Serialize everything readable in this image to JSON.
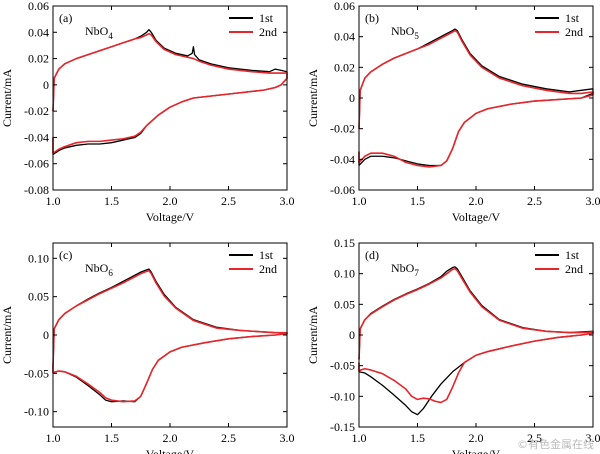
{
  "watermark": "©有色金属在线",
  "colors": {
    "first": "#000000",
    "second": "#e8252a",
    "axis": "#000000"
  },
  "chart_data": [
    {
      "type": "line",
      "panel": "(a)",
      "compound": "NbO",
      "compound_sub": "4",
      "xlabel": "Voltage/V",
      "ylabel": "Current/mA",
      "xlim": [
        1.0,
        3.0
      ],
      "ylim": [
        -0.08,
        0.06
      ],
      "xticks": [
        1.0,
        1.5,
        2.0,
        2.5,
        3.0
      ],
      "xtick_labels": [
        "1.0",
        "1.5",
        "2.0",
        "2.5",
        "3.0"
      ],
      "yticks": [
        -0.08,
        -0.06,
        -0.04,
        -0.02,
        0,
        0.02,
        0.04,
        0.06
      ],
      "ytick_labels": [
        "-0.08",
        "-0.06",
        "-0.04",
        "-0.02",
        "0",
        "0.02",
        "0.04",
        "0.06"
      ],
      "legend": [
        "1st",
        "2nd"
      ],
      "legend_position": "top-right",
      "series": [
        {
          "name": "1st",
          "color": "#000000",
          "x": [
            1.0,
            1.01,
            1.05,
            1.1,
            1.2,
            1.3,
            1.4,
            1.5,
            1.6,
            1.7,
            1.75,
            1.8,
            1.82,
            1.84,
            1.88,
            1.95,
            2.05,
            2.15,
            2.19,
            2.2,
            2.21,
            2.25,
            2.35,
            2.5,
            2.7,
            2.85,
            2.9,
            2.95,
            3.0,
            3.0,
            2.95,
            2.9,
            2.8,
            2.6,
            2.4,
            2.2,
            2.1,
            2.0,
            1.9,
            1.8,
            1.75,
            1.7,
            1.65,
            1.6,
            1.5,
            1.4,
            1.3,
            1.2,
            1.1,
            1.05,
            1.0,
            1.0
          ],
          "y": [
            -0.02,
            0.005,
            0.012,
            0.016,
            0.02,
            0.023,
            0.026,
            0.029,
            0.032,
            0.035,
            0.037,
            0.04,
            0.042,
            0.04,
            0.034,
            0.028,
            0.024,
            0.022,
            0.024,
            0.029,
            0.023,
            0.019,
            0.016,
            0.013,
            0.011,
            0.01,
            0.012,
            0.011,
            0.01,
            0.005,
            0.0,
            -0.002,
            -0.004,
            -0.006,
            -0.008,
            -0.01,
            -0.013,
            -0.017,
            -0.023,
            -0.031,
            -0.037,
            -0.04,
            -0.041,
            -0.042,
            -0.044,
            -0.045,
            -0.045,
            -0.046,
            -0.048,
            -0.05,
            -0.053,
            -0.04
          ]
        },
        {
          "name": "2nd",
          "color": "#e8252a",
          "x": [
            1.0,
            1.01,
            1.05,
            1.1,
            1.2,
            1.3,
            1.4,
            1.5,
            1.6,
            1.7,
            1.75,
            1.8,
            1.82,
            1.84,
            1.88,
            1.95,
            2.05,
            2.15,
            2.2,
            2.25,
            2.35,
            2.5,
            2.7,
            2.85,
            2.95,
            3.0,
            3.0,
            2.95,
            2.9,
            2.8,
            2.6,
            2.4,
            2.2,
            2.1,
            2.0,
            1.9,
            1.8,
            1.75,
            1.7,
            1.6,
            1.5,
            1.4,
            1.3,
            1.2,
            1.1,
            1.05,
            1.0,
            1.0
          ],
          "y": [
            -0.02,
            0.005,
            0.012,
            0.016,
            0.02,
            0.023,
            0.026,
            0.029,
            0.032,
            0.035,
            0.036,
            0.038,
            0.039,
            0.038,
            0.033,
            0.027,
            0.023,
            0.021,
            0.02,
            0.018,
            0.015,
            0.012,
            0.01,
            0.009,
            0.009,
            0.009,
            0.005,
            0.0,
            -0.002,
            -0.004,
            -0.006,
            -0.008,
            -0.01,
            -0.013,
            -0.017,
            -0.023,
            -0.031,
            -0.036,
            -0.039,
            -0.041,
            -0.042,
            -0.043,
            -0.043,
            -0.044,
            -0.047,
            -0.049,
            -0.052,
            -0.04
          ]
        }
      ]
    },
    {
      "type": "line",
      "panel": "(b)",
      "compound": "NbO",
      "compound_sub": "5",
      "xlabel": "Voltage/V",
      "ylabel": "Current/mA",
      "xlim": [
        1.0,
        3.0
      ],
      "ylim": [
        -0.06,
        0.06
      ],
      "xticks": [
        1.0,
        1.5,
        2.0,
        2.5,
        3.0
      ],
      "xtick_labels": [
        "1.0",
        "1.5",
        "2.0",
        "2.5",
        "3.0"
      ],
      "yticks": [
        -0.06,
        -0.04,
        -0.02,
        0,
        0.02,
        0.04,
        0.06
      ],
      "ytick_labels": [
        "-0.06",
        "-0.04",
        "-0.02",
        "0",
        "0.02",
        "0.04",
        "0.06"
      ],
      "legend": [
        "1st",
        "2nd"
      ],
      "legend_position": "top-right",
      "series": [
        {
          "name": "1st",
          "color": "#000000",
          "x": [
            1.0,
            1.01,
            1.05,
            1.1,
            1.2,
            1.3,
            1.4,
            1.5,
            1.6,
            1.7,
            1.75,
            1.8,
            1.82,
            1.84,
            1.88,
            1.95,
            2.05,
            2.2,
            2.4,
            2.6,
            2.8,
            2.9,
            3.0,
            3.0,
            2.9,
            2.7,
            2.5,
            2.3,
            2.1,
            2.0,
            1.9,
            1.85,
            1.8,
            1.75,
            1.7,
            1.6,
            1.5,
            1.4,
            1.3,
            1.2,
            1.1,
            1.05,
            1.0,
            1.0
          ],
          "y": [
            -0.02,
            0.005,
            0.013,
            0.017,
            0.022,
            0.026,
            0.029,
            0.032,
            0.036,
            0.04,
            0.042,
            0.044,
            0.045,
            0.044,
            0.038,
            0.029,
            0.021,
            0.014,
            0.009,
            0.006,
            0.004,
            0.005,
            0.006,
            0.003,
            0.0,
            -0.001,
            -0.002,
            -0.004,
            -0.007,
            -0.01,
            -0.016,
            -0.022,
            -0.033,
            -0.041,
            -0.044,
            -0.044,
            -0.043,
            -0.041,
            -0.039,
            -0.038,
            -0.038,
            -0.04,
            -0.044,
            -0.035
          ]
        },
        {
          "name": "2nd",
          "color": "#e8252a",
          "x": [
            1.0,
            1.01,
            1.05,
            1.1,
            1.2,
            1.3,
            1.4,
            1.5,
            1.6,
            1.7,
            1.75,
            1.8,
            1.82,
            1.84,
            1.88,
            1.95,
            2.05,
            2.2,
            2.4,
            2.6,
            2.8,
            2.9,
            3.0,
            3.0,
            2.9,
            2.7,
            2.5,
            2.3,
            2.1,
            2.0,
            1.9,
            1.85,
            1.8,
            1.75,
            1.7,
            1.6,
            1.5,
            1.4,
            1.3,
            1.2,
            1.1,
            1.05,
            1.0,
            1.0
          ],
          "y": [
            -0.02,
            0.005,
            0.013,
            0.017,
            0.022,
            0.026,
            0.029,
            0.032,
            0.035,
            0.039,
            0.041,
            0.043,
            0.044,
            0.043,
            0.037,
            0.028,
            0.02,
            0.013,
            0.008,
            0.005,
            0.003,
            0.003,
            0.004,
            0.002,
            0.0,
            -0.001,
            -0.002,
            -0.004,
            -0.007,
            -0.01,
            -0.016,
            -0.022,
            -0.033,
            -0.041,
            -0.044,
            -0.045,
            -0.044,
            -0.042,
            -0.038,
            -0.036,
            -0.036,
            -0.038,
            -0.042,
            -0.035
          ]
        }
      ]
    },
    {
      "type": "line",
      "panel": "(c)",
      "compound": "NbO",
      "compound_sub": "6",
      "xlabel": "Voltage/V",
      "ylabel": "Current/mA",
      "xlim": [
        1.0,
        3.0
      ],
      "ylim": [
        -0.12,
        0.12
      ],
      "xticks": [
        1.0,
        1.5,
        2.0,
        2.5,
        3.0
      ],
      "xtick_labels": [
        "1.0",
        "1.5",
        "2.0",
        "2.5",
        "3.0"
      ],
      "yticks": [
        -0.1,
        -0.05,
        0,
        0.05,
        0.1
      ],
      "ytick_labels": [
        "-0.10",
        "-0.05",
        "0",
        "0.05",
        "0.10"
      ],
      "legend": [
        "1st",
        "2nd"
      ],
      "legend_position": "top-right",
      "series": [
        {
          "name": "1st",
          "color": "#000000",
          "x": [
            1.0,
            1.01,
            1.05,
            1.1,
            1.2,
            1.3,
            1.4,
            1.5,
            1.6,
            1.7,
            1.75,
            1.8,
            1.82,
            1.84,
            1.88,
            1.95,
            2.05,
            2.2,
            2.4,
            2.6,
            2.8,
            2.9,
            3.0,
            3.0,
            2.9,
            2.7,
            2.5,
            2.3,
            2.1,
            2.0,
            1.9,
            1.85,
            1.8,
            1.75,
            1.7,
            1.6,
            1.5,
            1.45,
            1.4,
            1.3,
            1.2,
            1.1,
            1.05,
            1.0,
            1.0
          ],
          "y": [
            -0.04,
            0.008,
            0.02,
            0.028,
            0.038,
            0.047,
            0.055,
            0.062,
            0.07,
            0.078,
            0.082,
            0.085,
            0.086,
            0.082,
            0.07,
            0.053,
            0.036,
            0.02,
            0.01,
            0.006,
            0.004,
            0.003,
            0.003,
            0.002,
            0.0,
            -0.002,
            -0.005,
            -0.01,
            -0.016,
            -0.022,
            -0.033,
            -0.045,
            -0.063,
            -0.08,
            -0.087,
            -0.086,
            -0.087,
            -0.085,
            -0.078,
            -0.066,
            -0.055,
            -0.048,
            -0.047,
            -0.049,
            -0.04
          ]
        },
        {
          "name": "2nd",
          "color": "#e8252a",
          "x": [
            1.0,
            1.01,
            1.05,
            1.1,
            1.2,
            1.3,
            1.4,
            1.5,
            1.6,
            1.7,
            1.75,
            1.8,
            1.82,
            1.84,
            1.88,
            1.95,
            2.05,
            2.2,
            2.4,
            2.6,
            2.8,
            2.9,
            3.0,
            3.0,
            2.9,
            2.7,
            2.5,
            2.3,
            2.1,
            2.0,
            1.9,
            1.85,
            1.8,
            1.75,
            1.7,
            1.6,
            1.5,
            1.45,
            1.4,
            1.3,
            1.2,
            1.1,
            1.05,
            1.0,
            1.0
          ],
          "y": [
            -0.04,
            0.008,
            0.02,
            0.028,
            0.038,
            0.046,
            0.054,
            0.061,
            0.068,
            0.076,
            0.08,
            0.083,
            0.084,
            0.08,
            0.068,
            0.051,
            0.035,
            0.019,
            0.009,
            0.006,
            0.004,
            0.003,
            0.003,
            0.002,
            0.0,
            -0.002,
            -0.005,
            -0.01,
            -0.016,
            -0.022,
            -0.033,
            -0.045,
            -0.063,
            -0.08,
            -0.086,
            -0.087,
            -0.085,
            -0.082,
            -0.075,
            -0.064,
            -0.054,
            -0.048,
            -0.047,
            -0.049,
            -0.04
          ]
        }
      ]
    },
    {
      "type": "line",
      "panel": "(d)",
      "compound": "NbO",
      "compound_sub": "7",
      "xlabel": "Voltage/V",
      "ylabel": "Current/mA",
      "xlim": [
        1.0,
        3.0
      ],
      "ylim": [
        -0.15,
        0.15
      ],
      "xticks": [
        1.0,
        1.5,
        2.0,
        2.5,
        3.0
      ],
      "xtick_labels": [
        "1.0",
        "1.5",
        "2.0",
        "2.5",
        "3.0"
      ],
      "yticks": [
        -0.15,
        -0.1,
        -0.05,
        0,
        0.05,
        0.1,
        0.15
      ],
      "ytick_labels": [
        "-0.15",
        "-0.10",
        "-0.05",
        "0",
        "0.05",
        "0.10",
        "0.15"
      ],
      "legend": [
        "1st",
        "2nd"
      ],
      "legend_position": "top-right",
      "series": [
        {
          "name": "1st",
          "color": "#000000",
          "x": [
            1.0,
            1.01,
            1.05,
            1.1,
            1.2,
            1.3,
            1.4,
            1.5,
            1.6,
            1.7,
            1.75,
            1.8,
            1.82,
            1.84,
            1.88,
            1.95,
            2.05,
            2.2,
            2.4,
            2.6,
            2.8,
            2.9,
            3.0,
            3.0,
            2.9,
            2.7,
            2.5,
            2.3,
            2.1,
            2.0,
            1.9,
            1.8,
            1.7,
            1.62,
            1.55,
            1.5,
            1.45,
            1.4,
            1.3,
            1.2,
            1.1,
            1.05,
            1.0,
            1.0
          ],
          "y": [
            -0.04,
            0.01,
            0.025,
            0.035,
            0.047,
            0.058,
            0.067,
            0.075,
            0.084,
            0.095,
            0.104,
            0.11,
            0.111,
            0.108,
            0.095,
            0.072,
            0.048,
            0.025,
            0.012,
            0.006,
            0.004,
            0.005,
            0.006,
            0.003,
            0.0,
            -0.004,
            -0.01,
            -0.018,
            -0.027,
            -0.033,
            -0.045,
            -0.06,
            -0.08,
            -0.1,
            -0.12,
            -0.13,
            -0.125,
            -0.115,
            -0.098,
            -0.082,
            -0.068,
            -0.062,
            -0.06,
            -0.045
          ]
        },
        {
          "name": "2nd",
          "color": "#e8252a",
          "x": [
            1.0,
            1.01,
            1.05,
            1.1,
            1.2,
            1.3,
            1.4,
            1.5,
            1.6,
            1.7,
            1.75,
            1.8,
            1.82,
            1.84,
            1.88,
            1.95,
            2.05,
            2.2,
            2.4,
            2.6,
            2.8,
            2.9,
            3.0,
            3.0,
            2.9,
            2.7,
            2.5,
            2.3,
            2.1,
            2.0,
            1.9,
            1.85,
            1.8,
            1.75,
            1.7,
            1.65,
            1.6,
            1.55,
            1.5,
            1.45,
            1.4,
            1.3,
            1.2,
            1.1,
            1.05,
            1.0,
            1.0
          ],
          "y": [
            -0.04,
            0.01,
            0.025,
            0.034,
            0.046,
            0.057,
            0.066,
            0.074,
            0.083,
            0.093,
            0.1,
            0.107,
            0.108,
            0.105,
            0.092,
            0.07,
            0.046,
            0.024,
            0.011,
            0.006,
            0.004,
            0.004,
            0.005,
            0.003,
            0.0,
            -0.004,
            -0.01,
            -0.018,
            -0.027,
            -0.033,
            -0.045,
            -0.062,
            -0.085,
            -0.105,
            -0.11,
            -0.108,
            -0.104,
            -0.103,
            -0.105,
            -0.1,
            -0.088,
            -0.074,
            -0.063,
            -0.057,
            -0.055,
            -0.058,
            -0.045
          ]
        }
      ]
    }
  ]
}
